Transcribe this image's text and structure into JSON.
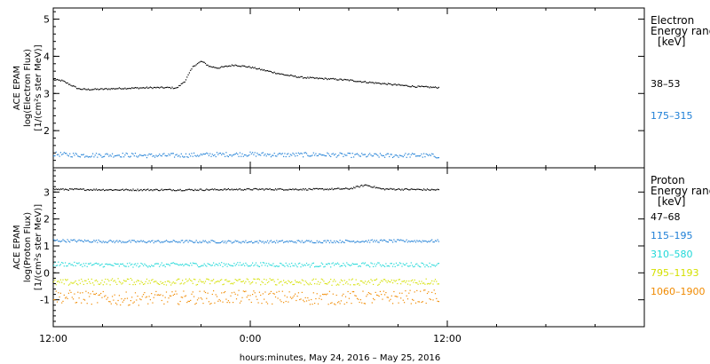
{
  "chart_data": [
    {
      "type": "scatter",
      "instrument_label": "ACE EPAM",
      "ylabel_line1": "log(Electron Flux)",
      "ylabel_line2": "[1/(cm²s ster MeV)]",
      "ylim": [
        1.0,
        5.3
      ],
      "yticks": [
        2,
        3,
        4,
        5
      ],
      "legend_title": [
        "Electron",
        "Energy ranges",
        "[keV]"
      ],
      "series": [
        {
          "name": "38–53",
          "color": "#000000",
          "x": [
            0,
            0.5,
            1,
            1.5,
            2,
            3,
            4,
            5,
            6,
            7,
            7.5,
            8,
            8.5,
            9,
            9.5,
            10,
            11,
            12,
            13,
            14,
            15,
            16,
            17,
            18,
            19,
            20,
            21,
            22,
            23,
            23.5
          ],
          "y": [
            3.38,
            3.36,
            3.25,
            3.14,
            3.12,
            3.13,
            3.15,
            3.16,
            3.17,
            3.17,
            3.16,
            3.35,
            3.75,
            3.88,
            3.74,
            3.7,
            3.78,
            3.72,
            3.62,
            3.52,
            3.45,
            3.42,
            3.4,
            3.37,
            3.32,
            3.28,
            3.24,
            3.2,
            3.18,
            3.17
          ]
        },
        {
          "name": "175–315",
          "color": "#1e7fd6",
          "x": [
            0,
            2,
            4,
            6,
            8,
            10,
            12,
            14,
            16,
            18,
            20,
            22,
            23.5
          ],
          "y": [
            1.38,
            1.35,
            1.36,
            1.34,
            1.35,
            1.37,
            1.38,
            1.36,
            1.37,
            1.35,
            1.34,
            1.35,
            1.33
          ]
        }
      ]
    },
    {
      "type": "scatter",
      "instrument_label": "ACE EPAM",
      "ylabel_line1": "log(Proton Flux)",
      "ylabel_line2": "[1/(cm²s ster MeV)]",
      "ylim": [
        -2.0,
        3.9
      ],
      "yticks": [
        -1,
        0,
        1,
        2,
        3
      ],
      "legend_title": [
        "Proton",
        "Energy ranges",
        "[keV]"
      ],
      "series": [
        {
          "name": "47–68",
          "color": "#000000",
          "x": [
            0,
            4,
            8,
            12,
            16,
            18,
            19,
            20,
            23.5
          ],
          "y": [
            3.12,
            3.1,
            3.1,
            3.12,
            3.12,
            3.14,
            3.28,
            3.13,
            3.1
          ]
        },
        {
          "name": "115–195",
          "color": "#1e7fd6",
          "x": [
            0,
            4,
            8,
            12,
            16,
            20,
            23.5
          ],
          "y": [
            1.22,
            1.18,
            1.18,
            1.17,
            1.18,
            1.2,
            1.2
          ]
        },
        {
          "name": "310–580",
          "color": "#1fd8d8",
          "x": [
            0,
            4,
            8,
            12,
            16,
            20,
            23.5
          ],
          "y": [
            0.35,
            0.3,
            0.32,
            0.33,
            0.31,
            0.32,
            0.32
          ]
        },
        {
          "name": "795–1193",
          "color": "#d4e000",
          "x": [
            0,
            4,
            8,
            12,
            16,
            20,
            23.5
          ],
          "y": [
            -0.35,
            -0.3,
            -0.32,
            -0.3,
            -0.33,
            -0.32,
            -0.3
          ]
        },
        {
          "name": "1060–1900",
          "color": "#f08a00",
          "x": [
            0,
            4,
            8,
            12,
            16,
            20,
            23.5
          ],
          "y": [
            -0.85,
            -0.95,
            -0.9,
            -0.88,
            -0.92,
            -0.9,
            -0.85
          ]
        }
      ]
    }
  ],
  "x_axis": {
    "xlim": [
      0,
      36
    ],
    "ticks": [
      {
        "x": 0,
        "label": "12:00"
      },
      {
        "x": 12,
        "label": "0:00"
      },
      {
        "x": 24,
        "label": "12:00"
      },
      {
        "x": 36,
        "label": ""
      }
    ],
    "minor_step": 3,
    "xlabel": "hours:minutes, May 24, 2016 – May 25, 2016"
  }
}
